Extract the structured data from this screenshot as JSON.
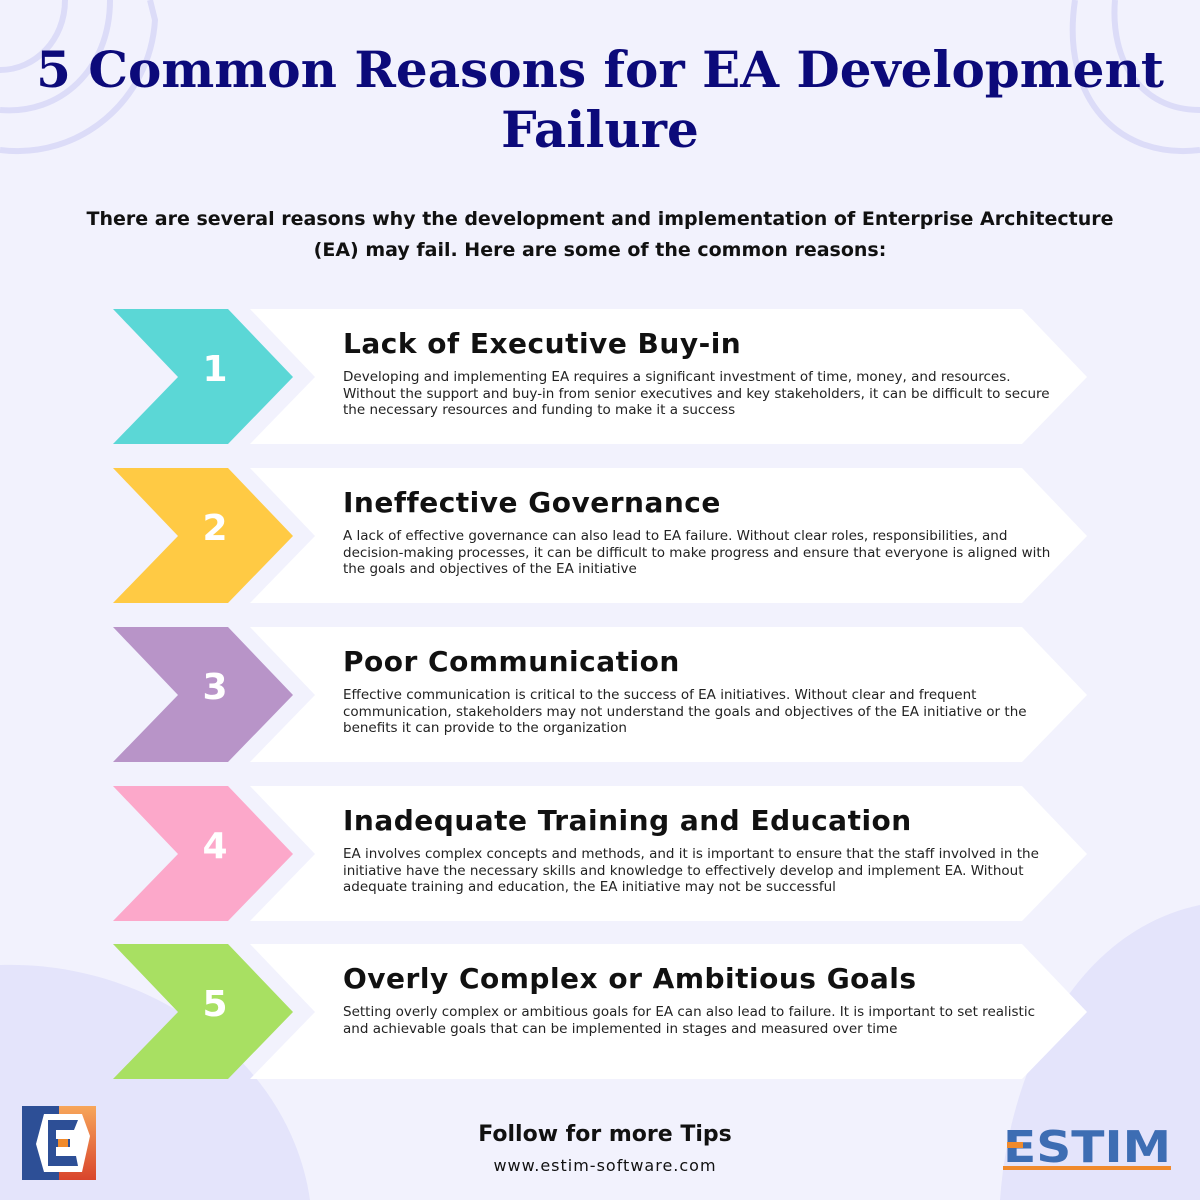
{
  "title": "5 Common Reasons for EA Development Failure",
  "intro": "There are several reasons why the development and implementation of Enterprise Architecture (EA) may fail. Here are some of the common reasons:",
  "items": [
    {
      "number": "1",
      "title": "Lack of Executive Buy-in",
      "description": "Developing and implementing EA requires a significant investment of time, money, and resources. Without the support and buy-in from senior executives and key stakeholders, it can be difficult to secure the necessary resources and funding to make it a success",
      "color": "#5bd7d6"
    },
    {
      "number": "2",
      "title": "Ineffective Governance",
      "description": "A lack of effective governance can also lead to EA failure. Without clear roles, responsibilities, and decision-making processes, it can be difficult to make progress and ensure that everyone is aligned with the goals and objectives of the EA initiative",
      "color": "#ffca44"
    },
    {
      "number": "3",
      "title": "Poor Communication",
      "description": "Effective communication is critical to the success of EA initiatives. Without clear and frequent communication, stakeholders may not understand the goals and objectives of the EA initiative or the benefits it can provide to the organization",
      "color": "#b894c8"
    },
    {
      "number": "4",
      "title": "Inadequate Training and Education",
      "description": "EA involves complex concepts and methods, and it is important to ensure that the staff involved in the initiative have the necessary skills and knowledge to effectively develop and implement EA. Without adequate training and education, the EA initiative may not be successful",
      "color": "#fca8ca"
    },
    {
      "number": "5",
      "title": "Overly Complex or Ambitious Goals",
      "description": "Setting overly complex or ambitious goals for EA can also lead to failure. It is important to set realistic and achievable goals that can be implemented in stages and measured over time",
      "color": "#a8e062"
    }
  ],
  "footer": {
    "follow": "Follow for more Tips",
    "url": "www.estim-software.com"
  },
  "logos": {
    "left": "E",
    "right": "ESTIM"
  },
  "colors": {
    "title": "#0c0a7a",
    "background": "#f2f2fd",
    "logo_blue": "#3d6db3",
    "logo_orange": "#f08a2c"
  }
}
